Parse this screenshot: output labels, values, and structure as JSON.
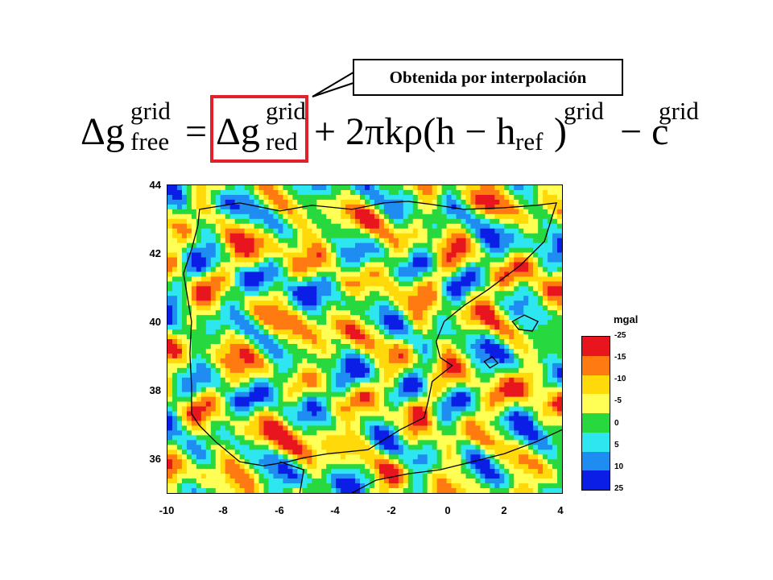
{
  "callout": {
    "text": "Obtenida por interpolación"
  },
  "formula": {
    "lhs_base": "Δg",
    "lhs_sup": "grid",
    "lhs_sub": "free",
    "equals": "=",
    "red_base": "Δg",
    "red_sup": "grid",
    "red_sub": "red",
    "plus_term": "+ 2πkρ(h − h",
    "href_sub": "ref",
    "paren_close": ")",
    "paren_sup": "grid",
    "minus_c": "− c",
    "c_sup": "grid"
  },
  "map": {
    "y_ticks": [
      "44",
      "42",
      "40",
      "38",
      "36"
    ],
    "x_ticks": [
      "-10",
      "-8",
      "-6",
      "-4",
      "-2",
      "0",
      "2",
      "4"
    ],
    "x_range": [
      -10,
      4
    ],
    "y_range": [
      35,
      44
    ]
  },
  "legend": {
    "title": "mgal",
    "labels": [
      "-25",
      "-15",
      "-10",
      "-5",
      "0",
      "5",
      "10",
      "25"
    ],
    "colors": [
      "#e8141e",
      "#ff7a10",
      "#ffd90a",
      "#ffff55",
      "#27d83e",
      "#2ee6f0",
      "#1e8cf0",
      "#0a1ee6"
    ]
  }
}
